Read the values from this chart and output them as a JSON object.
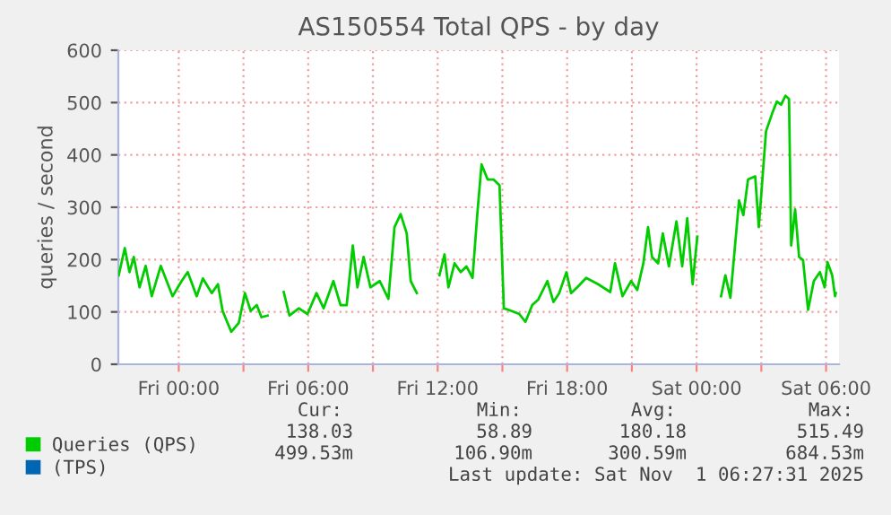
{
  "chart_data": {
    "type": "line",
    "title": "AS150554 Total QPS - by day",
    "ylabel": "queries / second",
    "xlim": [
      "2025-10-30T21:12",
      "2025-11-01T06:36"
    ],
    "ylim": [
      0,
      600
    ],
    "xticks": [
      {
        "value": "2025-10-31T00:00",
        "label": "Fri 00:00"
      },
      {
        "value": "2025-10-31T03:00",
        "label": null
      },
      {
        "value": "2025-10-31T06:00",
        "label": "Fri 06:00"
      },
      {
        "value": "2025-10-31T09:00",
        "label": null
      },
      {
        "value": "2025-10-31T12:00",
        "label": "Fri 12:00"
      },
      {
        "value": "2025-10-31T15:00",
        "label": null
      },
      {
        "value": "2025-10-31T18:00",
        "label": "Fri 18:00"
      },
      {
        "value": "2025-10-31T21:00",
        "label": null
      },
      {
        "value": "2025-11-01T00:00",
        "label": "Sat 00:00"
      },
      {
        "value": "2025-11-01T03:00",
        "label": null
      },
      {
        "value": "2025-11-01T06:00",
        "label": "Sat 06:00"
      }
    ],
    "yticks": [
      0,
      100,
      200,
      300,
      400,
      500,
      600
    ],
    "grid": true,
    "legend": "bottom left",
    "series": [
      {
        "name": "Queries (QPS)",
        "color": "#00cc00",
        "x": [
          "2025-10-30T21:13",
          "2025-10-30T21:30",
          "2025-10-30T21:43",
          "2025-10-30T21:55",
          "2025-10-30T22:11",
          "2025-10-30T22:28",
          "2025-10-30T22:45",
          "2025-10-30T23:10",
          "2025-10-30T23:43",
          "2025-10-31T00:08",
          "2025-10-31T00:25",
          "2025-10-31T00:50",
          "2025-10-31T01:07",
          "2025-10-31T01:32",
          "2025-10-31T01:49",
          "2025-10-31T02:02",
          "2025-10-31T02:26",
          "2025-10-31T02:47",
          "2025-10-31T03:04",
          "2025-10-31T03:20",
          "2025-10-31T03:37",
          "2025-10-31T03:50",
          "2025-10-31T04:07",
          "2025-10-31T04:30",
          "2025-10-31T04:52",
          "2025-10-31T05:08",
          "2025-10-31T05:34",
          "2025-10-31T05:58",
          "2025-10-31T06:23",
          "2025-10-31T06:43",
          "2025-10-31T07:10",
          "2025-10-31T07:30",
          "2025-10-31T07:47",
          "2025-10-31T08:04",
          "2025-10-31T08:17",
          "2025-10-31T08:34",
          "2025-10-31T08:53",
          "2025-10-31T09:19",
          "2025-10-31T09:43",
          "2025-10-31T10:00",
          "2025-10-31T10:17",
          "2025-10-31T10:34",
          "2025-10-31T10:45",
          "2025-10-31T11:02",
          "2025-10-31T11:30",
          "2025-10-31T12:05",
          "2025-10-31T12:19",
          "2025-10-31T12:30",
          "2025-10-31T12:47",
          "2025-10-31T13:04",
          "2025-10-31T13:20",
          "2025-10-31T13:37",
          "2025-10-31T13:50",
          "2025-10-31T14:02",
          "2025-10-31T14:19",
          "2025-10-31T14:35",
          "2025-10-31T14:52",
          "2025-10-31T15:04",
          "2025-10-31T15:25",
          "2025-10-31T15:47",
          "2025-10-31T16:04",
          "2025-10-31T16:23",
          "2025-10-31T16:40",
          "2025-10-31T17:05",
          "2025-10-31T17:22",
          "2025-10-31T17:38",
          "2025-10-31T17:58",
          "2025-10-31T18:11",
          "2025-10-31T18:28",
          "2025-10-31T18:53",
          "2025-10-31T19:26",
          "2025-10-31T20:00",
          "2025-10-31T20:13",
          "2025-10-31T20:34",
          "2025-10-31T20:58",
          "2025-10-31T21:15",
          "2025-10-31T21:32",
          "2025-10-31T21:45",
          "2025-10-31T21:56",
          "2025-10-31T22:13",
          "2025-10-31T22:26",
          "2025-10-31T22:43",
          "2025-10-31T23:04",
          "2025-10-31T23:20",
          "2025-10-31T23:34",
          "2025-10-31T23:49",
          "2025-11-01T00:02",
          "2025-11-01T00:36",
          "2025-11-01T01:08",
          "2025-11-01T01:20",
          "2025-11-01T01:34",
          "2025-11-01T01:58",
          "2025-11-01T02:10",
          "2025-11-01T02:23",
          "2025-11-01T02:43",
          "2025-11-01T02:53",
          "2025-11-01T03:13",
          "2025-11-01T03:30",
          "2025-11-01T03:43",
          "2025-11-01T03:55",
          "2025-11-01T04:07",
          "2025-11-01T04:17",
          "2025-11-01T04:23",
          "2025-11-01T04:34",
          "2025-11-01T04:45",
          "2025-11-01T04:56",
          "2025-11-01T05:10",
          "2025-11-01T05:26",
          "2025-11-01T05:43",
          "2025-11-01T05:56",
          "2025-11-01T06:04",
          "2025-11-01T06:17",
          "2025-11-01T06:25",
          "2025-11-01T06:27"
        ],
        "values": [
          170,
          222,
          176,
          205,
          147,
          188,
          130,
          188,
          130,
          159,
          176,
          130,
          164,
          136,
          153,
          102,
          62,
          79,
          136,
          102,
          113,
          90,
          93,
          null,
          138,
          93,
          107,
          96,
          136,
          107,
          159,
          113,
          113,
          227,
          147,
          205,
          147,
          159,
          125,
          262,
          287,
          250,
          159,
          136,
          null,
          170,
          210,
          147,
          193,
          176,
          187,
          165,
          285,
          382,
          353,
          353,
          342,
          107,
          102,
          96,
          81,
          113,
          124,
          159,
          119,
          136,
          176,
          136,
          147,
          165,
          153,
          138,
          193,
          130,
          159,
          142,
          193,
          262,
          205,
          193,
          250,
          187,
          273,
          187,
          279,
          153,
          244,
          null,
          130,
          170,
          127,
          313,
          285,
          353,
          359,
          262,
          445,
          479,
          502,
          496,
          513,
          507,
          227,
          296,
          205,
          199,
          104,
          159,
          176,
          147,
          195,
          170,
          130,
          136
        ]
      },
      {
        "name": "(TPS)",
        "color": "#0066b3",
        "values": [
          null
        ]
      }
    ],
    "annotations": [
      "Cur:",
      "Min:",
      "Avg:",
      "Max:",
      "138.03",
      "58.89",
      "180.18",
      "515.49",
      "499.53m",
      "106.90m",
      "300.59m",
      "684.53m",
      "Last update: Sat Nov  1 06:27:31 2025"
    ]
  }
}
